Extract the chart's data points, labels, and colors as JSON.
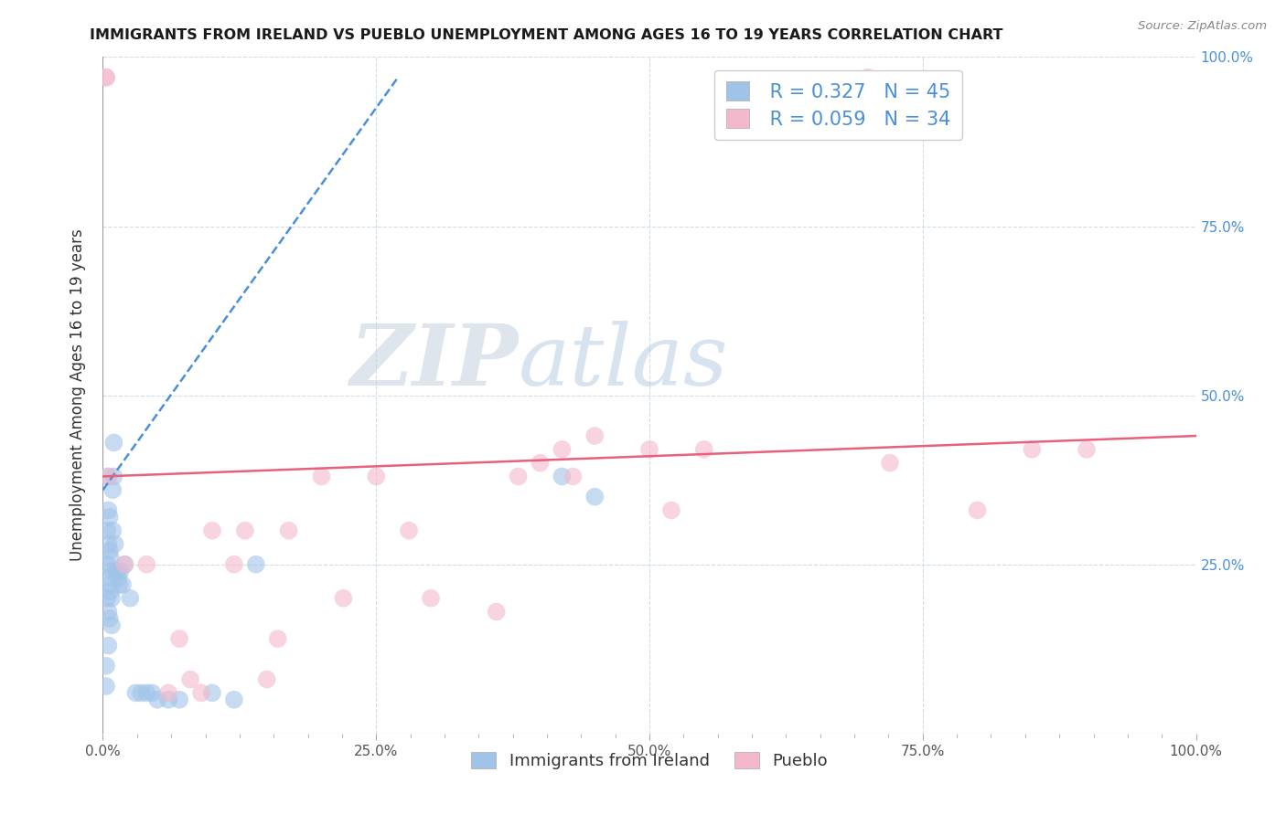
{
  "title": "IMMIGRANTS FROM IRELAND VS PUEBLO UNEMPLOYMENT AMONG AGES 16 TO 19 YEARS CORRELATION CHART",
  "source_text": "Source: ZipAtlas.com",
  "ylabel": "Unemployment Among Ages 16 to 19 years",
  "xlabel_blue": "Immigrants from Ireland",
  "xlabel_pink": "Pueblo",
  "xlim": [
    0,
    1.0
  ],
  "ylim": [
    0,
    1.0
  ],
  "xtick_labels": [
    "0.0%",
    "",
    "",
    "",
    "",
    "",
    "",
    "",
    "25.0%",
    "",
    "",
    "",
    "",
    "",
    "",
    "",
    "50.0%",
    "",
    "",
    "",
    "",
    "",
    "",
    "",
    "75.0%",
    "",
    "",
    "",
    "",
    "",
    "",
    "",
    "100.0%"
  ],
  "xtick_positions": [
    0.0,
    0.03125,
    0.0625,
    0.09375,
    0.125,
    0.15625,
    0.1875,
    0.21875,
    0.25,
    0.28125,
    0.3125,
    0.34375,
    0.375,
    0.40625,
    0.4375,
    0.46875,
    0.5,
    0.53125,
    0.5625,
    0.59375,
    0.625,
    0.65625,
    0.6875,
    0.71875,
    0.75,
    0.78125,
    0.8125,
    0.84375,
    0.875,
    0.90625,
    0.9375,
    0.96875,
    1.0
  ],
  "legend_R_blue": "0.327",
  "legend_N_blue": "45",
  "legend_R_pink": "0.059",
  "legend_N_pink": "34",
  "blue_scatter_x": [
    0.003,
    0.003,
    0.004,
    0.004,
    0.004,
    0.005,
    0.005,
    0.005,
    0.005,
    0.005,
    0.005,
    0.006,
    0.006,
    0.006,
    0.006,
    0.007,
    0.007,
    0.008,
    0.008,
    0.008,
    0.009,
    0.009,
    0.01,
    0.01,
    0.011,
    0.012,
    0.013,
    0.014,
    0.015,
    0.016,
    0.018,
    0.02,
    0.025,
    0.03,
    0.035,
    0.04,
    0.045,
    0.05,
    0.06,
    0.07,
    0.1,
    0.12,
    0.14,
    0.42,
    0.45
  ],
  "blue_scatter_y": [
    0.1,
    0.07,
    0.3,
    0.25,
    0.2,
    0.38,
    0.33,
    0.28,
    0.23,
    0.18,
    0.13,
    0.32,
    0.27,
    0.22,
    0.17,
    0.26,
    0.21,
    0.24,
    0.2,
    0.16,
    0.36,
    0.3,
    0.43,
    0.38,
    0.28,
    0.24,
    0.24,
    0.23,
    0.22,
    0.24,
    0.22,
    0.25,
    0.2,
    0.06,
    0.06,
    0.06,
    0.06,
    0.05,
    0.05,
    0.05,
    0.06,
    0.05,
    0.25,
    0.38,
    0.35
  ],
  "pink_scatter_x": [
    0.003,
    0.003,
    0.005,
    0.02,
    0.04,
    0.06,
    0.07,
    0.08,
    0.09,
    0.1,
    0.12,
    0.13,
    0.15,
    0.16,
    0.17,
    0.2,
    0.22,
    0.25,
    0.28,
    0.3,
    0.36,
    0.38,
    0.4,
    0.42,
    0.43,
    0.45,
    0.5,
    0.52,
    0.55,
    0.7,
    0.72,
    0.8,
    0.85,
    0.9
  ],
  "pink_scatter_y": [
    0.97,
    0.97,
    0.38,
    0.25,
    0.25,
    0.06,
    0.14,
    0.08,
    0.06,
    0.3,
    0.25,
    0.3,
    0.08,
    0.14,
    0.3,
    0.38,
    0.2,
    0.38,
    0.3,
    0.2,
    0.18,
    0.38,
    0.4,
    0.42,
    0.38,
    0.44,
    0.42,
    0.33,
    0.42,
    0.97,
    0.4,
    0.33,
    0.42,
    0.42
  ],
  "blue_line_x": [
    0.0,
    0.27
  ],
  "blue_line_y": [
    0.36,
    0.97
  ],
  "pink_line_x": [
    0.0,
    1.0
  ],
  "pink_line_y": [
    0.38,
    0.44
  ],
  "blue_color": "#a0c4e8",
  "blue_line_color": "#4a90d9",
  "pink_color": "#f4b8cc",
  "pink_line_color": "#e8607a",
  "watermark_zip": "ZIP",
  "watermark_atlas": "atlas",
  "watermark_zip_color": "#c8d4e0",
  "watermark_atlas_color": "#b0c8e0",
  "background_color": "#ffffff",
  "grid_color": "#d0dce8",
  "title_color": "#1a1a1a",
  "source_color": "#888888",
  "right_axis_label_color": "#4a90d9",
  "tick_label_color": "#555555",
  "bottom_legend_label_color": "#333333"
}
